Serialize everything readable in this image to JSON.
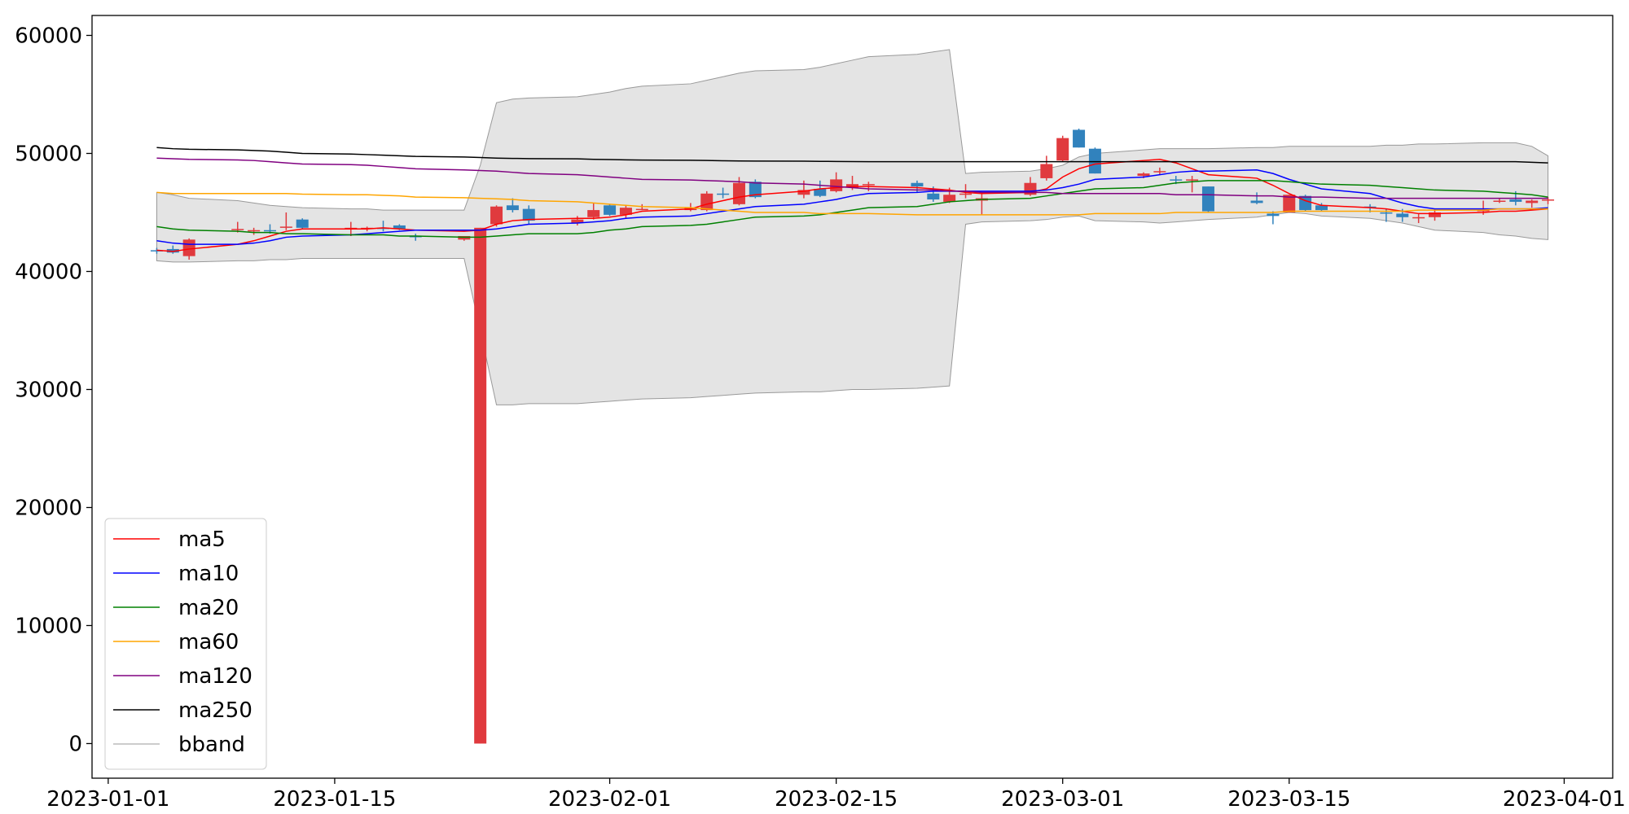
{
  "chart_data": {
    "type": "candlestick",
    "x": [
      "2023-01-04",
      "2023-01-05",
      "2023-01-06",
      "2023-01-09",
      "2023-01-10",
      "2023-01-11",
      "2023-01-12",
      "2023-01-13",
      "2023-01-16",
      "2023-01-17",
      "2023-01-18",
      "2023-01-19",
      "2023-01-20",
      "2023-01-23",
      "2023-01-24",
      "2023-01-25",
      "2023-01-26",
      "2023-01-27",
      "2023-01-30",
      "2023-01-31",
      "2023-02-01",
      "2023-02-02",
      "2023-02-03",
      "2023-02-06",
      "2023-02-07",
      "2023-02-08",
      "2023-02-09",
      "2023-02-10",
      "2023-02-13",
      "2023-02-14",
      "2023-02-15",
      "2023-02-16",
      "2023-02-17",
      "2023-02-20",
      "2023-02-21",
      "2023-02-22",
      "2023-02-23",
      "2023-02-24",
      "2023-02-27",
      "2023-02-28",
      "2023-03-01",
      "2023-03-02",
      "2023-03-03",
      "2023-03-06",
      "2023-03-07",
      "2023-03-08",
      "2023-03-09",
      "2023-03-10",
      "2023-03-13",
      "2023-03-14",
      "2023-03-15",
      "2023-03-16",
      "2023-03-17",
      "2023-03-20",
      "2023-03-21",
      "2023-03-22",
      "2023-03-23",
      "2023-03-24",
      "2023-03-27",
      "2023-03-28",
      "2023-03-29",
      "2023-03-30",
      "2023-03-31"
    ],
    "candles": {
      "up_color": "#e03a3e",
      "down_color": "#3182bd",
      "open": [
        41800,
        41900,
        41300,
        43500,
        43400,
        43500,
        43700,
        44400,
        43600,
        43600,
        43700,
        43900,
        43000,
        42700,
        0,
        44000,
        45600,
        45300,
        44100,
        44600,
        45600,
        44800,
        45300,
        45200,
        45200,
        46600,
        45700,
        47600,
        46500,
        47000,
        46800,
        47100,
        47400,
        47500,
        46600,
        45900,
        46600,
        46000,
        46500,
        47900,
        49400,
        52000,
        50400,
        48100,
        48400,
        47800,
        47700,
        47200,
        46000,
        44900,
        45000,
        46400,
        45600,
        45500,
        45000,
        44900,
        44600,
        44600,
        45100,
        45900,
        46100,
        45800,
        46000
      ],
      "high": [
        42000,
        42200,
        42800,
        44200,
        43700,
        44000,
        45000,
        44500,
        44200,
        43800,
        44300,
        44000,
        43200,
        43000,
        43700,
        45600,
        46200,
        45600,
        44700,
        45800,
        45700,
        45600,
        45700,
        45800,
        46800,
        47100,
        48000,
        47800,
        47700,
        47700,
        48400,
        48100,
        47600,
        47700,
        47200,
        47100,
        47400,
        46600,
        48000,
        49800,
        51500,
        52100,
        50500,
        48400,
        48800,
        48100,
        48100,
        47200,
        46700,
        45100,
        46500,
        46500,
        45800,
        45700,
        45300,
        45300,
        44900,
        45300,
        46000,
        46200,
        46800,
        46100,
        46300
      ],
      "low": [
        41500,
        41500,
        41000,
        43300,
        43100,
        43200,
        43500,
        43600,
        43000,
        43400,
        43400,
        43500,
        42600,
        42600,
        0,
        43800,
        45000,
        44000,
        43900,
        44400,
        44700,
        44500,
        45200,
        45100,
        45100,
        46200,
        45600,
        46200,
        46200,
        46300,
        46700,
        46900,
        46800,
        46700,
        45900,
        45800,
        46200,
        44800,
        46400,
        47700,
        49300,
        50500,
        48300,
        47900,
        48200,
        47400,
        46700,
        45000,
        45700,
        44000,
        45000,
        45100,
        45100,
        45000,
        44200,
        44200,
        44100,
        44300,
        44800,
        45800,
        45600,
        45400,
        45700
      ],
      "close": [
        41700,
        41600,
        42700,
        43600,
        43500,
        43400,
        43800,
        43700,
        43700,
        43700,
        43600,
        43600,
        42900,
        43000,
        43700,
        45500,
        45200,
        44300,
        44400,
        45200,
        44800,
        45400,
        45300,
        45400,
        46600,
        46500,
        47500,
        46300,
        46900,
        46400,
        47800,
        47400,
        47400,
        47200,
        46100,
        46500,
        46600,
        46200,
        47500,
        49100,
        51300,
        50500,
        48300,
        48300,
        48500,
        47700,
        47800,
        45100,
        45800,
        44700,
        46500,
        45200,
        45200,
        45400,
        44900,
        44600,
        44600,
        45000,
        45200,
        46000,
        45900,
        46000,
        46100
      ]
    },
    "bband": {
      "name": "bband",
      "color": "#e4e4e4",
      "edge_color": "#999999",
      "upper": [
        46700,
        46500,
        46200,
        46000,
        45800,
        45600,
        45500,
        45400,
        45300,
        45300,
        45200,
        45200,
        45200,
        45200,
        49000,
        54300,
        54600,
        54700,
        54800,
        55000,
        55200,
        55500,
        55700,
        55900,
        56200,
        56500,
        56800,
        57000,
        57100,
        57300,
        57600,
        57900,
        58200,
        58400,
        58600,
        58800,
        48300,
        48400,
        48500,
        48700,
        49000,
        49700,
        50000,
        50300,
        50400,
        50400,
        50400,
        50400,
        50500,
        50500,
        50600,
        50600,
        50600,
        50600,
        50700,
        50700,
        50800,
        50800,
        50900,
        50900,
        50900,
        50600,
        49800
      ],
      "lower": [
        40900,
        40800,
        40800,
        40900,
        40900,
        41000,
        41000,
        41100,
        41100,
        41100,
        41100,
        41100,
        41100,
        41100,
        35000,
        28700,
        28700,
        28800,
        28800,
        28900,
        29000,
        29100,
        29200,
        29300,
        29400,
        29500,
        29600,
        29700,
        29800,
        29800,
        29900,
        30000,
        30000,
        30100,
        30200,
        30300,
        44000,
        44200,
        44300,
        44400,
        44600,
        44700,
        44300,
        44200,
        44100,
        44200,
        44300,
        44400,
        44600,
        44800,
        45000,
        44900,
        44700,
        44500,
        44300,
        44100,
        43800,
        43500,
        43300,
        43100,
        43000,
        42800,
        42700
      ]
    },
    "series": [
      {
        "name": "ma5",
        "color": "#ff0000",
        "values": [
          41800,
          41700,
          41900,
          42300,
          42600,
          43000,
          43400,
          43600,
          43600,
          43600,
          43700,
          43600,
          43500,
          43400,
          43500,
          44000,
          44300,
          44400,
          44500,
          44500,
          44600,
          44800,
          45100,
          45300,
          45700,
          46000,
          46300,
          46500,
          46800,
          47000,
          47100,
          47200,
          47200,
          47100,
          47000,
          46900,
          46700,
          46600,
          46700,
          47000,
          48000,
          48700,
          49100,
          49400,
          49500,
          49200,
          48700,
          48200,
          47900,
          47300,
          46600,
          46000,
          45600,
          45400,
          45300,
          45100,
          44900,
          44900,
          45000,
          45100,
          45100,
          45200,
          45300
        ]
      },
      {
        "name": "ma10",
        "color": "#0000ff",
        "values": [
          42600,
          42400,
          42300,
          42300,
          42400,
          42600,
          42900,
          43000,
          43100,
          43200,
          43300,
          43400,
          43500,
          43500,
          43500,
          43600,
          43800,
          44000,
          44100,
          44200,
          44300,
          44500,
          44600,
          44700,
          44900,
          45100,
          45300,
          45500,
          45700,
          45900,
          46100,
          46400,
          46600,
          46700,
          46800,
          46800,
          46800,
          46800,
          46800,
          46900,
          47100,
          47400,
          47800,
          48000,
          48200,
          48400,
          48500,
          48500,
          48600,
          48300,
          47800,
          47400,
          47000,
          46600,
          46200,
          45800,
          45500,
          45300,
          45300,
          45300,
          45300,
          45300,
          45400
        ]
      },
      {
        "name": "ma20",
        "color": "#008000",
        "values": [
          43800,
          43600,
          43500,
          43400,
          43300,
          43300,
          43200,
          43200,
          43100,
          43100,
          43100,
          43000,
          43000,
          42900,
          42900,
          43000,
          43100,
          43200,
          43200,
          43300,
          43500,
          43600,
          43800,
          43900,
          44000,
          44200,
          44400,
          44600,
          44700,
          44800,
          45000,
          45200,
          45400,
          45500,
          45700,
          45900,
          46000,
          46100,
          46200,
          46400,
          46600,
          46800,
          47000,
          47100,
          47300,
          47500,
          47600,
          47700,
          47700,
          47700,
          47600,
          47500,
          47400,
          47300,
          47200,
          47100,
          47000,
          46900,
          46800,
          46700,
          46600,
          46500,
          46300
        ]
      },
      {
        "name": "ma60",
        "color": "#ffa500",
        "values": [
          46700,
          46600,
          46600,
          46600,
          46600,
          46600,
          46600,
          46550,
          46500,
          46500,
          46450,
          46400,
          46300,
          46250,
          46200,
          46150,
          46100,
          46000,
          45900,
          45800,
          45700,
          45600,
          45500,
          45400,
          45300,
          45200,
          45100,
          45000,
          45000,
          44900,
          44900,
          44900,
          44900,
          44800,
          44800,
          44800,
          44800,
          44800,
          44800,
          44800,
          44800,
          44800,
          44900,
          44900,
          44900,
          45000,
          45000,
          45000,
          45000,
          45000,
          45100,
          45100,
          45100,
          45100,
          45100,
          45100,
          45200,
          45200,
          45200,
          45300,
          45300,
          45300,
          45300
        ]
      },
      {
        "name": "ma120",
        "color": "#800080",
        "values": [
          49600,
          49550,
          49500,
          49450,
          49400,
          49300,
          49200,
          49100,
          49050,
          49000,
          48900,
          48800,
          48700,
          48600,
          48550,
          48500,
          48400,
          48300,
          48200,
          48100,
          48000,
          47900,
          47800,
          47750,
          47700,
          47650,
          47600,
          47500,
          47400,
          47300,
          47200,
          47100,
          47000,
          46900,
          46900,
          46800,
          46800,
          46700,
          46700,
          46700,
          46600,
          46600,
          46600,
          46600,
          46600,
          46500,
          46500,
          46500,
          46400,
          46400,
          46300,
          46300,
          46300,
          46200,
          46200,
          46200,
          46200,
          46200,
          46200,
          46200,
          46200,
          46200,
          46200
        ]
      },
      {
        "name": "ma250",
        "color": "#000000",
        "values": [
          50500,
          50400,
          50350,
          50300,
          50250,
          50200,
          50100,
          50000,
          49950,
          49900,
          49850,
          49800,
          49750,
          49700,
          49650,
          49600,
          49580,
          49560,
          49540,
          49500,
          49480,
          49460,
          49440,
          49420,
          49400,
          49380,
          49360,
          49350,
          49340,
          49330,
          49320,
          49310,
          49300,
          49300,
          49300,
          49300,
          49300,
          49300,
          49300,
          49300,
          49300,
          49300,
          49300,
          49300,
          49300,
          49300,
          49300,
          49300,
          49300,
          49300,
          49300,
          49300,
          49300,
          49300,
          49300,
          49300,
          49300,
          49300,
          49300,
          49300,
          49300,
          49250,
          49200
        ]
      }
    ],
    "xlim": [
      "2022-12-31",
      "2023-04-04"
    ],
    "xticks": [
      "2023-01-01",
      "2023-01-15",
      "2023-02-01",
      "2023-02-15",
      "2023-03-01",
      "2023-03-15",
      "2023-04-01"
    ],
    "ylim": [
      -2933,
      61689
    ],
    "yticks": [
      0,
      10000,
      20000,
      30000,
      40000,
      50000,
      60000
    ],
    "legend": "lower left"
  }
}
